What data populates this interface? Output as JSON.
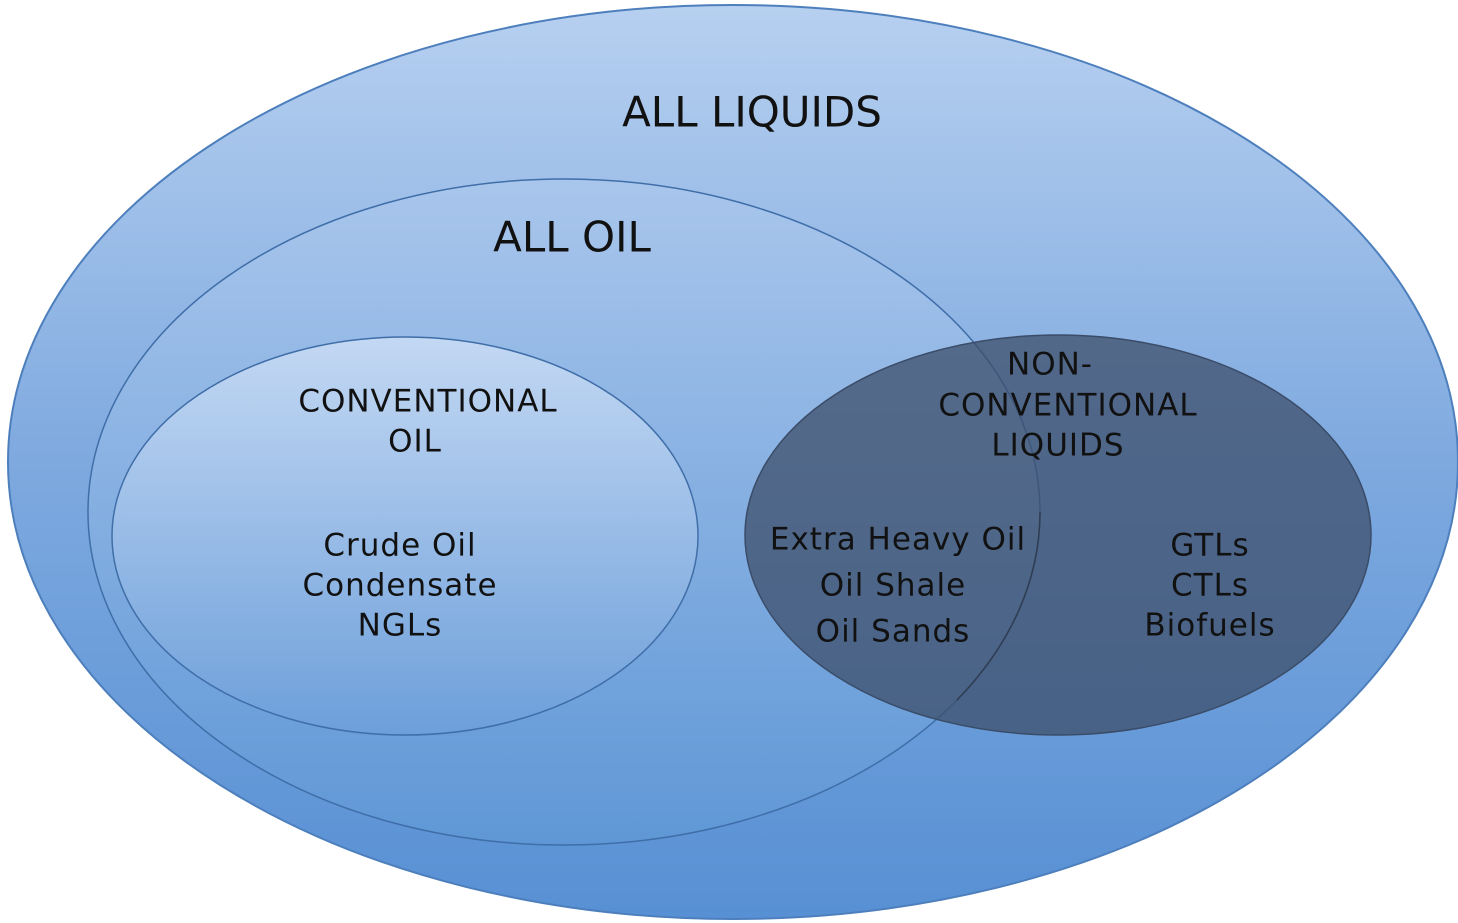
{
  "all_liquids": {
    "label": "ALL LIQUIDS"
  },
  "all_oil": {
    "label": "ALL OIL"
  },
  "conventional_oil": {
    "label_lines": [
      "CONVENTIONAL",
      "OIL"
    ],
    "items": [
      "Crude Oil",
      "Condensate",
      "NGLs"
    ]
  },
  "non_conventional_liquids": {
    "label_lines": [
      "NON-",
      "CONVENTIONAL",
      "LIQUIDS"
    ],
    "oil_items": [
      "Extra Heavy Oil",
      "Oil Shale",
      "Oil Sands"
    ],
    "other_items": [
      "GTLs",
      "CTLs",
      "Biofuels"
    ]
  }
}
